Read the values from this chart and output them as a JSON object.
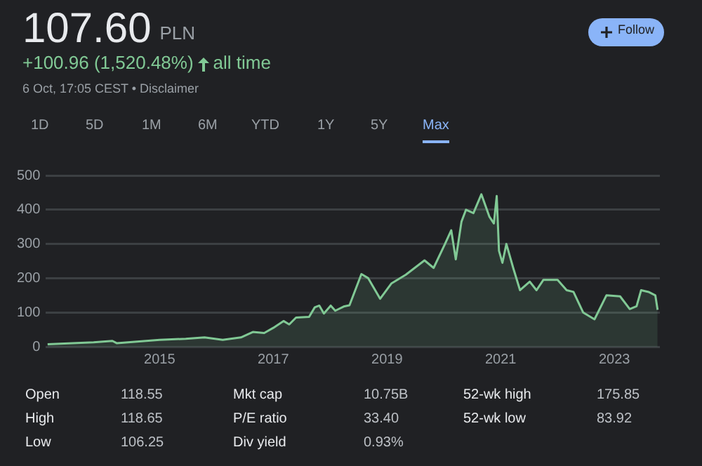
{
  "chart_data": {
    "type": "area",
    "title": "107.60",
    "subtitle": "+100.96 (1,520.48%)",
    "annotations": [
      "PLN",
      "all time",
      "6 Oct, 17:05 CEST • Disclaimer",
      "Follow",
      "1D",
      "5D",
      "1M",
      "6M",
      "YTD",
      "1Y",
      "5Y",
      "Max",
      "Open",
      "118.55",
      "High",
      "118.65",
      "Low",
      "106.25",
      "Mkt cap",
      "10.75B",
      "P/E ratio",
      "33.40",
      "Div yield",
      "0.93%",
      "52-wk high",
      "175.85",
      "52-wk low",
      "83.92"
    ],
    "x": [
      2013.03,
      2013.84,
      2014.17,
      2014.25,
      2015.0,
      2015.46,
      2015.79,
      2016.11,
      2016.43,
      2016.64,
      2016.84,
      2017.0,
      2017.18,
      2017.28,
      2017.4,
      2017.63,
      2017.73,
      2017.81,
      2017.89,
      2018.01,
      2018.09,
      2018.25,
      2018.34,
      2018.55,
      2018.67,
      2018.88,
      2019.08,
      2019.33,
      2019.66,
      2019.82,
      2020.02,
      2020.13,
      2020.21,
      2020.31,
      2020.39,
      2020.52,
      2020.66,
      2020.8,
      2020.88,
      2020.93,
      2020.97,
      2021.03,
      2021.1,
      2021.22,
      2021.34,
      2021.51,
      2021.63,
      2021.75,
      2022.0,
      2022.16,
      2022.28,
      2022.45,
      2022.65,
      2022.86,
      2023.1,
      2023.27,
      2023.39,
      2023.47,
      2023.6,
      2023.72,
      2023.76
    ],
    "series": [
      {
        "color": "#81c995",
        "values": [
          7,
          13,
          17,
          10,
          20,
          23,
          27,
          20,
          27,
          43,
          40,
          55,
          75,
          65,
          85,
          87,
          115,
          120,
          97,
          120,
          105,
          118,
          121,
          212,
          200,
          140,
          185,
          210,
          252,
          230,
          300,
          340,
          255,
          365,
          400,
          390,
          445,
          380,
          360,
          440,
          280,
          245,
          300,
          230,
          165,
          190,
          165,
          195,
          195,
          165,
          160,
          100,
          80,
          150,
          147,
          110,
          118,
          165,
          160,
          150,
          107.6
        ]
      }
    ],
    "xlim": [
      2013,
      2023.8
    ],
    "xticks": [
      2015,
      2017,
      2019,
      2021,
      2023
    ],
    "ylim": [
      0,
      500
    ],
    "yticks": [
      0,
      100,
      200,
      300,
      400,
      500
    ],
    "grid": "y",
    "legend": false,
    "marker": "none"
  }
}
